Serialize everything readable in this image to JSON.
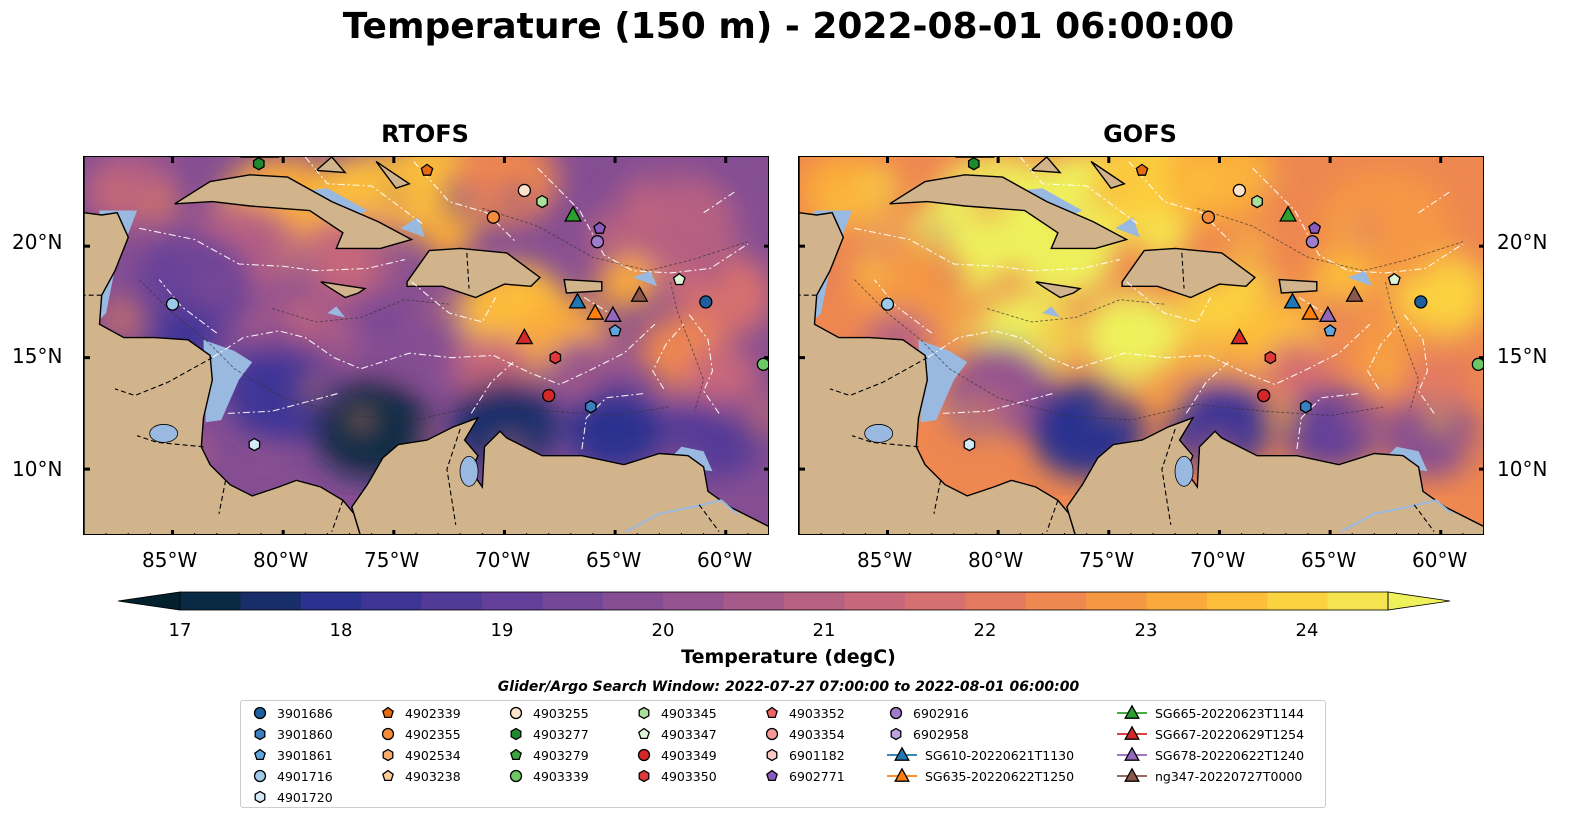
{
  "title": "Temperature (150 m) - 2022-08-01 06:00:00",
  "panels": [
    {
      "title": "RTOFS",
      "variant": "rtofs"
    },
    {
      "title": "GOFS",
      "variant": "gofs"
    }
  ],
  "axes": {
    "lon_ticks": [
      "85°W",
      "80°W",
      "75°W",
      "70°W",
      "65°W",
      "60°W"
    ],
    "lat_ticks": [
      "20°N",
      "15°N",
      "10°N"
    ],
    "lon_range": [
      -89,
      -58
    ],
    "lat_range": [
      7,
      24
    ]
  },
  "colorbar": {
    "label": "Temperature (degC)",
    "ticks": [
      "17",
      "18",
      "19",
      "20",
      "21",
      "22",
      "23",
      "24"
    ],
    "min": 16.5,
    "max": 24.5,
    "extend": "both",
    "colors": [
      "#03202e",
      "#0a2a44",
      "#172e6a",
      "#2a318f",
      "#3d3596",
      "#523a98",
      "#633f99",
      "#744796",
      "#854e93",
      "#95548f",
      "#a65a89",
      "#b66182",
      "#c7687a",
      "#d66f6f",
      "#e37a60",
      "#ee8750",
      "#f59844",
      "#faaa3a",
      "#fdbe3a",
      "#fbd240",
      "#f5e450",
      "#eef15c"
    ]
  },
  "search_window": "Glider/Argo Search Window: 2022-07-27 07:00:00 to 2022-08-01 06:00:00",
  "legend": {
    "columns": [
      [
        {
          "label": "3901686",
          "marker": "circle",
          "color": "#1f5f9e"
        },
        {
          "label": "3901860",
          "marker": "hexagon",
          "color": "#3a7fbf"
        },
        {
          "label": "3901861",
          "marker": "pentagon",
          "color": "#5da6db"
        },
        {
          "label": "4901716",
          "marker": "circle",
          "color": "#9ccae8"
        },
        {
          "label": "4901720",
          "marker": "hexagon",
          "color": "#d3e8f5"
        }
      ],
      [
        {
          "label": "4902339",
          "marker": "pentagon",
          "color": "#e86a10"
        },
        {
          "label": "4902355",
          "marker": "circle",
          "color": "#f58c3c"
        },
        {
          "label": "4902534",
          "marker": "hexagon",
          "color": "#f9ac6b"
        },
        {
          "label": "4903238",
          "marker": "pentagon",
          "color": "#fbcb9c"
        }
      ],
      [
        {
          "label": "4903255",
          "marker": "circle",
          "color": "#fde3cb"
        },
        {
          "label": "4903277",
          "marker": "hexagon",
          "color": "#1e8a2e"
        },
        {
          "label": "4903279",
          "marker": "pentagon",
          "color": "#3aa53e"
        },
        {
          "label": "4903339",
          "marker": "circle",
          "color": "#6cc764"
        }
      ],
      [
        {
          "label": "4903345",
          "marker": "hexagon",
          "color": "#a8e09c"
        },
        {
          "label": "4903347",
          "marker": "pentagon",
          "color": "#dff5d8"
        },
        {
          "label": "4903349",
          "marker": "circle",
          "color": "#d62728"
        },
        {
          "label": "4903350",
          "marker": "hexagon",
          "color": "#e0393b"
        }
      ],
      [
        {
          "label": "4903352",
          "marker": "pentagon",
          "color": "#ee6466"
        },
        {
          "label": "4903354",
          "marker": "circle",
          "color": "#f59a96"
        },
        {
          "label": "6901182",
          "marker": "hexagon",
          "color": "#fbc9c4"
        },
        {
          "label": "6902771",
          "marker": "pentagon",
          "color": "#8a5bbd"
        }
      ],
      [
        {
          "label": "6902916",
          "marker": "circle",
          "color": "#a07ccc"
        },
        {
          "label": "6902958",
          "marker": "hexagon",
          "color": "#bfa2dd"
        },
        {
          "label": "SG610-20220621T1130",
          "marker": "triangle",
          "color": "#1f77b4",
          "line": true
        },
        {
          "label": "SG635-20220622T1250",
          "marker": "triangle",
          "color": "#ff7f0e",
          "line": true
        }
      ],
      [
        {
          "label": "SG665-20220623T1144",
          "marker": "triangle",
          "color": "#2ca02c",
          "line": true
        },
        {
          "label": "SG667-20220629T1254",
          "marker": "triangle",
          "color": "#d62728",
          "line": true
        },
        {
          "label": "SG678-20220622T1240",
          "marker": "triangle",
          "color": "#9467bd",
          "line": true
        },
        {
          "label": "ng347-20220727T0000",
          "marker": "triangle",
          "color": "#8c564b",
          "line": true
        }
      ]
    ]
  },
  "observations": [
    {
      "id": "3901686",
      "lon": -60.9,
      "lat": 17.5
    },
    {
      "id": "3901860",
      "lon": -66.1,
      "lat": 12.8
    },
    {
      "id": "3901861",
      "lon": -65.0,
      "lat": 16.2
    },
    {
      "id": "4901716",
      "lon": -85.0,
      "lat": 17.4
    },
    {
      "id": "4901720",
      "lon": -81.3,
      "lat": 11.1
    },
    {
      "id": "4902339",
      "lon": -73.5,
      "lat": 23.4
    },
    {
      "id": "4902355",
      "lon": -70.5,
      "lat": 21.3
    },
    {
      "id": "4903255",
      "lon": -69.1,
      "lat": 22.5
    },
    {
      "id": "4903277",
      "lon": -81.1,
      "lat": 23.7
    },
    {
      "id": "4903339",
      "lon": -58.3,
      "lat": 14.7
    },
    {
      "id": "4903345",
      "lon": -68.3,
      "lat": 22.0
    },
    {
      "id": "4903347",
      "lon": -62.1,
      "lat": 18.5
    },
    {
      "id": "4903349",
      "lon": -68.0,
      "lat": 13.3
    },
    {
      "id": "4903350",
      "lon": -67.7,
      "lat": 15.0
    },
    {
      "id": "6902771",
      "lon": -65.7,
      "lat": 20.8
    },
    {
      "id": "6902916",
      "lon": -65.8,
      "lat": 20.2
    },
    {
      "id": "SG610-20220621T1130",
      "lon": -66.7,
      "lat": 17.5
    },
    {
      "id": "SG635-20220622T1250",
      "lon": -65.9,
      "lat": 17.0
    },
    {
      "id": "SG665-20220623T1144",
      "lon": -66.9,
      "lat": 21.4
    },
    {
      "id": "SG667-20220629T1254",
      "lon": -69.1,
      "lat": 15.9
    },
    {
      "id": "SG678-20220622T1240",
      "lon": -65.1,
      "lat": 16.9
    },
    {
      "id": "ng347-20220727T0000",
      "lon": -63.9,
      "lat": 17.8
    }
  ]
}
